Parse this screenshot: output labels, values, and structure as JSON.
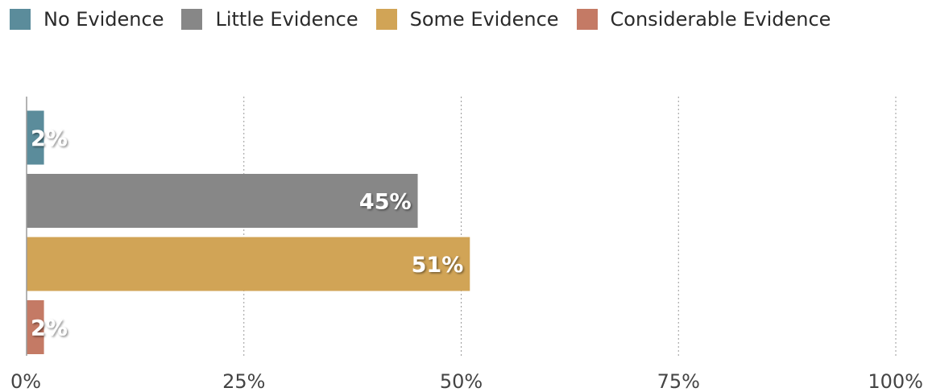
{
  "chart_data": {
    "type": "bar",
    "orientation": "horizontal",
    "categories": [
      "No Evidence",
      "Little Evidence",
      "Some Evidence",
      "Considerable Evidence"
    ],
    "values": [
      2,
      45,
      51,
      2
    ],
    "value_labels": [
      "2%",
      "45%",
      "51%",
      "2%"
    ],
    "colors": [
      "#5b8c9b",
      "#878787",
      "#d1a456",
      "#c47a65"
    ],
    "xlim": [
      0,
      100
    ],
    "xticks": [
      "0%",
      "25%",
      "50%",
      "75%",
      "100%"
    ],
    "grid": true,
    "legend_position": "top-left"
  }
}
